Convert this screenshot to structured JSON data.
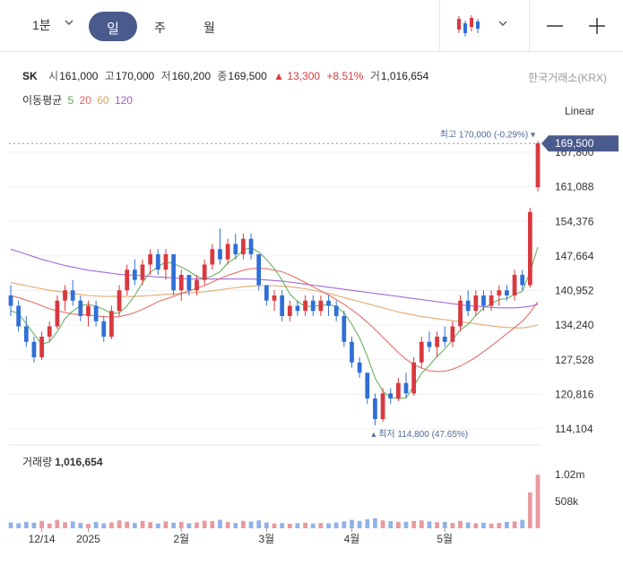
{
  "toolbar": {
    "interval": "1분",
    "tabs": [
      "일",
      "주",
      "월"
    ],
    "active_tab": "일"
  },
  "quote": {
    "symbol": "SK",
    "open_label": "시",
    "open": "161,000",
    "high_label": "고",
    "high": "170,000",
    "low_label": "저",
    "low": "160,200",
    "close_label": "종",
    "close": "169,500",
    "change": "13,300",
    "change_pct": "+8.51%",
    "volume_label": "거",
    "volume": "1,016,654",
    "exchange": "한국거래소(KRX)"
  },
  "ma_legend": {
    "title": "이동평균",
    "periods": [
      {
        "label": "5",
        "color": "#5aa84f"
      },
      {
        "label": "20",
        "color": "#e0605a"
      },
      {
        "label": "60",
        "color": "#e0a060"
      },
      {
        "label": "120",
        "color": "#9b59d6"
      }
    ]
  },
  "scale_mode": "Linear",
  "price_label": "169,500",
  "high_annotation": {
    "label": "최고",
    "value": "170,000 (-0.29%)"
  },
  "low_annotation": {
    "label": "최저",
    "value": "114,800 (47.65%)"
  },
  "volume_title": {
    "label": "거래량",
    "value": "1,016,654"
  },
  "colors": {
    "up": "#d9383f",
    "down": "#2f6fd6",
    "accent": "#4a5a8c"
  },
  "chart_data": [
    {
      "type": "candlestick",
      "ylim": [
        110000,
        173000
      ],
      "y_ticks": [
        "167,800",
        "161,088",
        "154,376",
        "147,664",
        "140,952",
        "134,240",
        "127,528",
        "120,816",
        "114,104"
      ],
      "y_tick_values": [
        167800,
        161088,
        154376,
        147664,
        140952,
        134240,
        127528,
        120816,
        114104
      ],
      "x_labels": [
        "12/14",
        "2025",
        "2월",
        "3월",
        "4월",
        "5월"
      ],
      "x_label_index": [
        4,
        10,
        22,
        33,
        44,
        56
      ],
      "candles": [
        [
          140000,
          142000,
          136000,
          138000
        ],
        [
          138000,
          139000,
          133000,
          134000
        ],
        [
          134000,
          136000,
          130000,
          131000
        ],
        [
          131000,
          132000,
          127000,
          128000
        ],
        [
          128000,
          133000,
          127500,
          132000
        ],
        [
          132000,
          135000,
          131000,
          134000
        ],
        [
          134000,
          140000,
          133500,
          139000
        ],
        [
          139000,
          142000,
          137000,
          141000
        ],
        [
          141000,
          143000,
          138000,
          139000
        ],
        [
          139000,
          140000,
          135000,
          136000
        ],
        [
          136000,
          139000,
          134000,
          138000
        ],
        [
          138000,
          139000,
          134000,
          135000
        ],
        [
          135000,
          136000,
          131000,
          132000
        ],
        [
          132000,
          138000,
          131500,
          137000
        ],
        [
          137000,
          142000,
          136000,
          141000
        ],
        [
          141000,
          146000,
          140000,
          145000
        ],
        [
          145000,
          147000,
          142000,
          143000
        ],
        [
          143000,
          147000,
          142000,
          146000
        ],
        [
          146000,
          149000,
          144000,
          148000
        ],
        [
          148000,
          149000,
          144000,
          145000
        ],
        [
          145000,
          149000,
          143000,
          148000
        ],
        [
          148000,
          148000,
          140000,
          141000
        ],
        [
          141000,
          145000,
          139000,
          144000
        ],
        [
          144000,
          144000,
          140000,
          141000
        ],
        [
          141000,
          144000,
          140000,
          143000
        ],
        [
          143000,
          147000,
          142000,
          146000
        ],
        [
          146000,
          150000,
          145000,
          149000
        ],
        [
          149000,
          153000,
          146000,
          147000
        ],
        [
          147000,
          151000,
          146000,
          150000
        ],
        [
          150000,
          152000,
          147000,
          148000
        ],
        [
          148000,
          152000,
          147000,
          151000
        ],
        [
          151000,
          152000,
          147000,
          148000
        ],
        [
          148000,
          148000,
          141000,
          142000
        ],
        [
          142000,
          142000,
          138000,
          139000
        ],
        [
          139000,
          141000,
          137000,
          140000
        ],
        [
          140000,
          141000,
          135000,
          136000
        ],
        [
          136000,
          139000,
          135000,
          138000
        ],
        [
          138000,
          139000,
          136000,
          137000
        ],
        [
          137000,
          140000,
          136000,
          139000
        ],
        [
          139000,
          140000,
          136000,
          137000
        ],
        [
          137000,
          140000,
          136000,
          139000
        ],
        [
          139000,
          140000,
          136000,
          138000
        ],
        [
          138000,
          139000,
          135000,
          136000
        ],
        [
          136000,
          137000,
          130000,
          131000
        ],
        [
          131000,
          132000,
          126000,
          127000
        ],
        [
          127000,
          128000,
          124000,
          125000
        ],
        [
          125000,
          125000,
          119000,
          120000
        ],
        [
          120000,
          121000,
          114800,
          116000
        ],
        [
          116000,
          122000,
          115500,
          121000
        ],
        [
          121000,
          122000,
          119000,
          120000
        ],
        [
          120000,
          124000,
          119500,
          123000
        ],
        [
          123000,
          125000,
          120000,
          121000
        ],
        [
          121000,
          128000,
          120500,
          127000
        ],
        [
          127000,
          132000,
          126000,
          131000
        ],
        [
          131000,
          133000,
          129000,
          130000
        ],
        [
          130000,
          133000,
          128000,
          132000
        ],
        [
          132000,
          134000,
          130000,
          131000
        ],
        [
          131000,
          135000,
          130000,
          134000
        ],
        [
          134000,
          140000,
          133000,
          139000
        ],
        [
          139000,
          141000,
          136000,
          137000
        ],
        [
          137000,
          141000,
          136000,
          140000
        ],
        [
          140000,
          141000,
          137000,
          138000
        ],
        [
          138000,
          141000,
          137000,
          140000
        ],
        [
          140000,
          142000,
          138000,
          141000
        ],
        [
          141000,
          142000,
          139000,
          140000
        ],
        [
          140000,
          145000,
          139000,
          144000
        ],
        [
          144000,
          145000,
          141000,
          142000
        ],
        [
          142000,
          157000,
          141500,
          156200
        ],
        [
          161000,
          170000,
          160200,
          169500
        ]
      ],
      "ma": {
        "5": [
          137000,
          136500,
          134500,
          132500,
          130500,
          131000,
          133000,
          135500,
          137000,
          138000,
          138300,
          137900,
          137300,
          136500,
          136600,
          138000,
          140000,
          142500,
          144500,
          145600,
          146500,
          146200,
          145500,
          144700,
          143700,
          143200,
          143800,
          144600,
          146300,
          147300,
          148800,
          149300,
          148400,
          147000,
          145200,
          143000,
          140300,
          138800,
          137900,
          137900,
          138100,
          138200,
          137900,
          136600,
          134400,
          131800,
          128200,
          124000,
          121400,
          120200,
          120000,
          120100,
          122400,
          124900,
          126400,
          128200,
          129600,
          131400,
          133300,
          134400,
          136100,
          137600,
          138400,
          139200,
          139400,
          140200,
          140800,
          144600,
          149400
        ],
        "20": [
          140000,
          139600,
          139100,
          138600,
          138000,
          137400,
          137000,
          136700,
          136400,
          136300,
          136200,
          136000,
          135900,
          135800,
          135900,
          136200,
          136700,
          137300,
          138000,
          138800,
          139300,
          139800,
          140400,
          140900,
          141400,
          141900,
          142600,
          143300,
          143900,
          144400,
          144900,
          145200,
          145300,
          145200,
          144900,
          144600,
          144000,
          143300,
          142500,
          141700,
          140900,
          140100,
          139200,
          138300,
          137200,
          136100,
          134800,
          133400,
          131900,
          130400,
          128900,
          127600,
          126600,
          125900,
          125400,
          125200,
          125300,
          125700,
          126300,
          127100,
          128000,
          129100,
          130200,
          131400,
          132600,
          133800,
          135000,
          136700,
          138800
        ],
        "60": [
          142500,
          142200,
          141900,
          141600,
          141300,
          141000,
          140800,
          140600,
          140400,
          140200,
          140000,
          139900,
          139800,
          139800,
          139800,
          139800,
          139800,
          139900,
          140000,
          140100,
          140200,
          140300,
          140400,
          140500,
          140600,
          140700,
          140900,
          141100,
          141300,
          141500,
          141700,
          141800,
          141900,
          141900,
          141900,
          141800,
          141700,
          141500,
          141300,
          141000,
          140700,
          140400,
          140000,
          139600,
          139200,
          138800,
          138400,
          138000,
          137600,
          137200,
          136800,
          136500,
          136200,
          135900,
          135700,
          135500,
          135300,
          135100,
          134900,
          134700,
          134500,
          134300,
          134100,
          133900,
          133800,
          133700,
          133700,
          133900,
          134300
        ],
        "120": [
          149000,
          148500,
          148000,
          147500,
          147000,
          146600,
          146200,
          145800,
          145500,
          145200,
          144900,
          144700,
          144500,
          144300,
          144100,
          144000,
          143900,
          143800,
          143700,
          143600,
          143500,
          143400,
          143300,
          143200,
          143200,
          143200,
          143200,
          143200,
          143200,
          143200,
          143200,
          143200,
          143100,
          143000,
          142900,
          142800,
          142600,
          142400,
          142200,
          142000,
          141800,
          141600,
          141400,
          141200,
          141000,
          140800,
          140600,
          140400,
          140200,
          140000,
          139800,
          139600,
          139400,
          139200,
          139000,
          138800,
          138600,
          138400,
          138200,
          138000,
          137900,
          137800,
          137700,
          137600,
          137600,
          137600,
          137700,
          137900,
          138300
        ]
      }
    },
    {
      "type": "bar",
      "title": "거래량",
      "y_ticks": [
        "1.02m",
        "508k"
      ],
      "y_tick_values": [
        1020000,
        508000
      ],
      "ylim": [
        0,
        1150000
      ],
      "values": [
        110000,
        95000,
        120000,
        105000,
        140000,
        90000,
        160000,
        115000,
        130000,
        100000,
        85000,
        120000,
        95000,
        110000,
        150000,
        125000,
        100000,
        140000,
        115000,
        90000,
        130000,
        105000,
        120000,
        95000,
        110000,
        145000,
        135000,
        160000,
        120000,
        100000,
        140000,
        130000,
        150000,
        110000,
        90000,
        100000,
        85000,
        95000,
        105000,
        90000,
        100000,
        95000,
        110000,
        130000,
        160000,
        140000,
        170000,
        190000,
        150000,
        135000,
        120000,
        125000,
        140000,
        150000,
        130000,
        115000,
        120000,
        100000,
        140000,
        110000,
        95000,
        105000,
        90000,
        100000,
        120000,
        130000,
        160000,
        680000,
        1016654
      ]
    }
  ]
}
